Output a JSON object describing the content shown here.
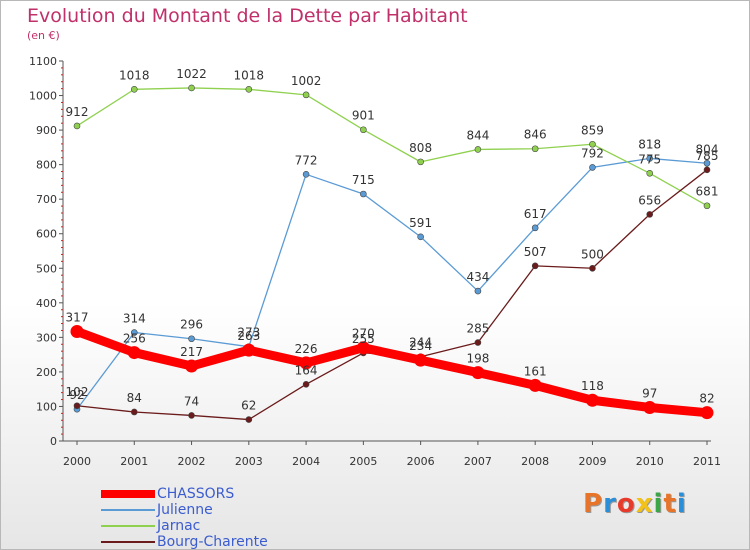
{
  "header": {
    "title": "Evolution du Montant de la Dette par Habitant",
    "subtitle": "(en €)"
  },
  "logo": {
    "text": "Proxiti",
    "colors": [
      "#e8742a",
      "#2a8fd8",
      "#e83a2a",
      "#f2c21b",
      "#3aa648",
      "#e8742a",
      "#2a8fd8"
    ]
  },
  "chart_data": {
    "type": "line",
    "x": [
      "2000",
      "2001",
      "2002",
      "2003",
      "2004",
      "2005",
      "2006",
      "2007",
      "2008",
      "2009",
      "2010",
      "2011"
    ],
    "ylim": [
      0,
      1100
    ],
    "yticks": [
      "0",
      "100",
      "200",
      "300",
      "400",
      "500",
      "600",
      "700",
      "800",
      "900",
      "1000",
      "1100"
    ],
    "grid": false,
    "legend_position": "bottom-left",
    "series": [
      {
        "name": "CHASSORS",
        "color": "#ff0000",
        "values": [
          317,
          256,
          217,
          263,
          226,
          270,
          234,
          198,
          161,
          118,
          97,
          82
        ],
        "labels": [
          "317",
          "256",
          "217",
          "263",
          "226",
          "270",
          "234",
          "198",
          "161",
          "118",
          "97",
          "82"
        ]
      },
      {
        "name": "Julienne",
        "color": "#5b9bd5",
        "values": [
          92,
          314,
          296,
          273,
          772,
          715,
          591,
          434,
          617,
          792,
          818,
          804
        ],
        "labels": [
          "92",
          "314",
          "296",
          "273",
          "772",
          "715",
          "591",
          "434",
          "617",
          "792",
          "818",
          "804"
        ]
      },
      {
        "name": "Jarnac",
        "color": "#8fd14f",
        "values": [
          912,
          1018,
          1022,
          1018,
          1002,
          901,
          808,
          844,
          846,
          859,
          775,
          681
        ],
        "labels": [
          "912",
          "1018",
          "1022",
          "1018",
          "1002",
          "901",
          "808",
          "844",
          "846",
          "859",
          "775",
          "681"
        ]
      },
      {
        "name": "Bourg-Charente",
        "color": "#6b1b1b",
        "values": [
          102,
          84,
          74,
          62,
          164,
          255,
          244,
          285,
          507,
          500,
          656,
          785
        ],
        "labels": [
          "102",
          "84",
          "74",
          "62",
          "164",
          "255",
          "244",
          "285",
          "507",
          "500",
          "656",
          "785"
        ]
      }
    ]
  }
}
